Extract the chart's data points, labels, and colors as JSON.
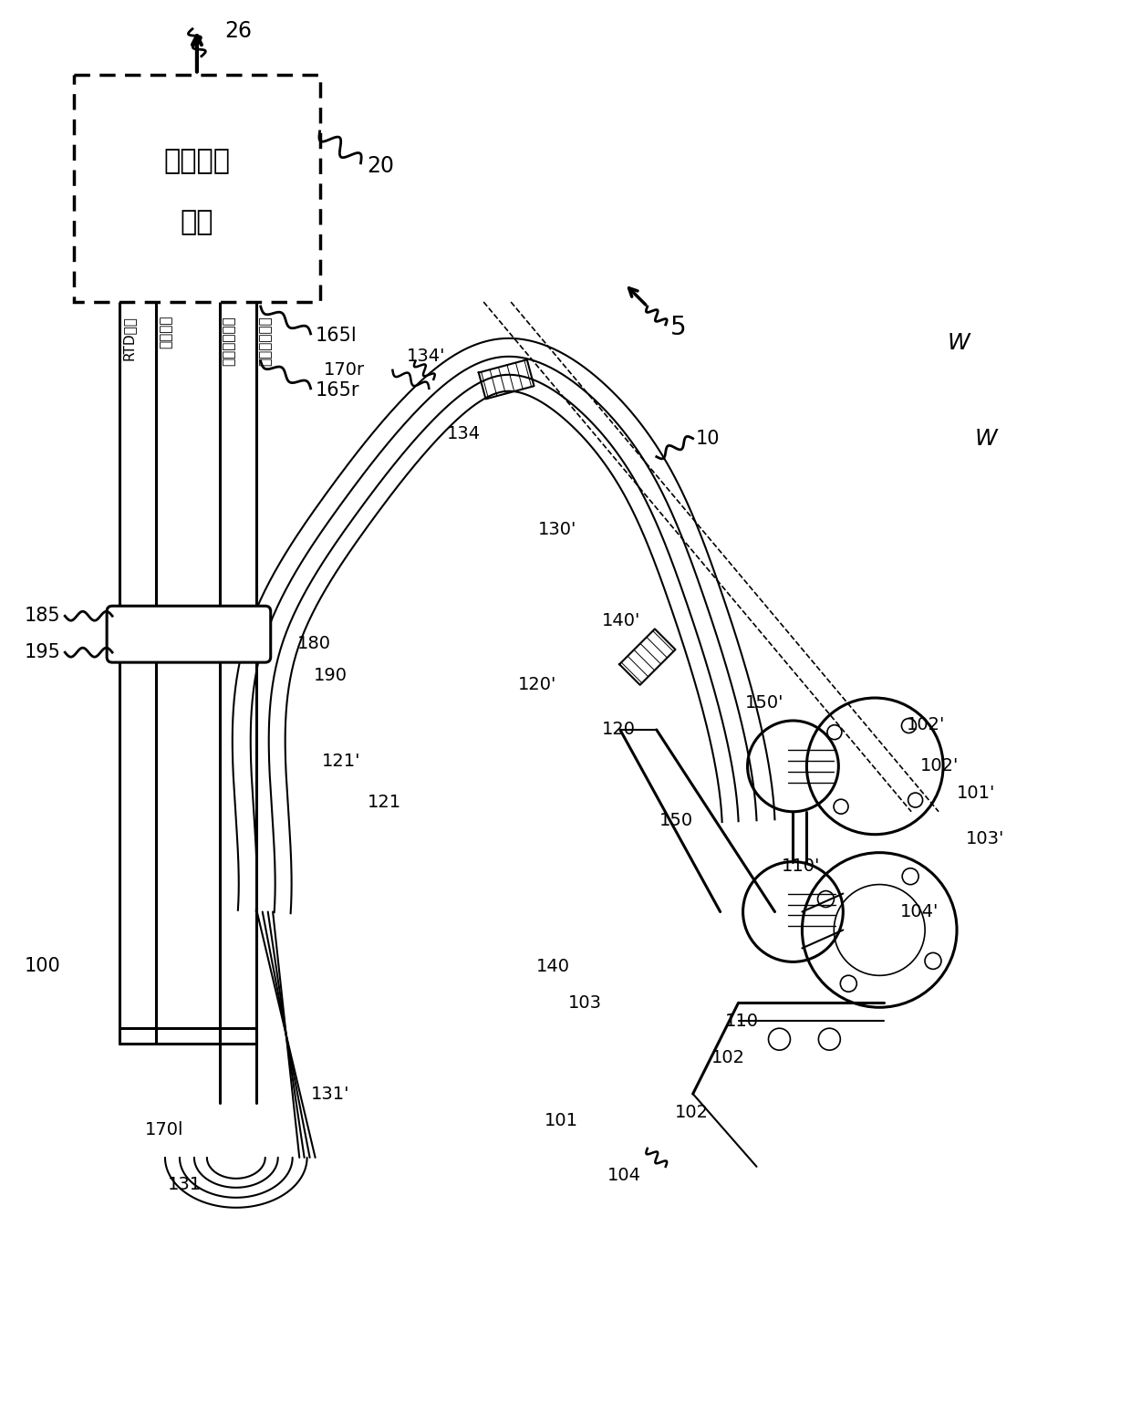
{
  "bg_color": "#ffffff",
  "lc": "#000000",
  "fig_w": 12.4,
  "fig_h": 15.61,
  "box_text1": "仪表电子",
  "box_text2": "器件",
  "signal_labels": [
    "RTD信号",
    "驱动信号",
    "左传感器信号",
    "右传感器信号"
  ]
}
